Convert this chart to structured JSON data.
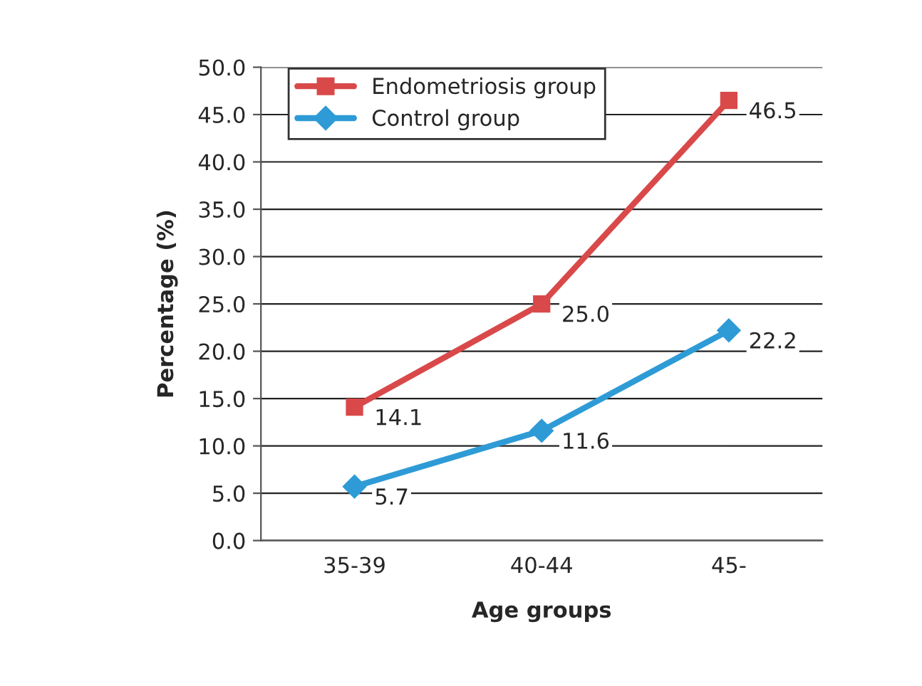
{
  "chart_data": {
    "type": "line",
    "xlabel": "Age groups",
    "ylabel": "Percentage (%)",
    "categories": [
      "35-39",
      "40-44",
      "45-"
    ],
    "series": [
      {
        "name": "Endometriosis group",
        "color": "#d9494a",
        "values": [
          14.1,
          25.0,
          46.5
        ],
        "marker": "square"
      },
      {
        "name": "Control group",
        "color": "#2e9bd6",
        "values": [
          5.7,
          11.6,
          22.2
        ],
        "marker": "diamond"
      }
    ],
    "ylim": [
      0,
      50
    ],
    "yticks": [
      {
        "value": 0,
        "label": "0.0"
      },
      {
        "value": 5,
        "label": "5.0"
      },
      {
        "value": 10,
        "label": "10.0"
      },
      {
        "value": 15,
        "label": "15.0"
      },
      {
        "value": 20,
        "label": "20.0"
      },
      {
        "value": 25,
        "label": "25.0"
      },
      {
        "value": 30,
        "label": "30.0"
      },
      {
        "value": 35,
        "label": "35.0"
      },
      {
        "value": 40,
        "label": "40.0"
      },
      {
        "value": 45,
        "label": "45.0"
      },
      {
        "value": 50,
        "label": "50.0"
      }
    ],
    "value_labels": [
      [
        "14.1",
        "25.0",
        "46.5"
      ],
      [
        "5.7",
        "11.6",
        "22.2"
      ]
    ],
    "grid": "y",
    "legend": "top left",
    "line_style": "solid"
  }
}
